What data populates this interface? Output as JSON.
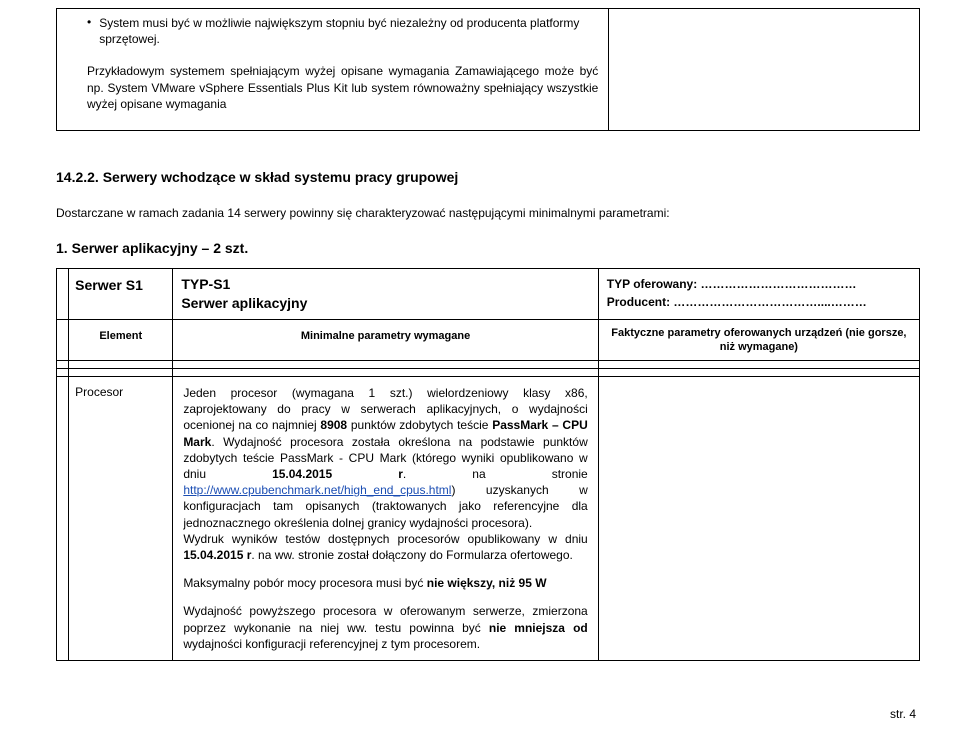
{
  "topBox": {
    "bullet": "System musi być w możliwie największym stopniu być niezależny od producenta platformy sprzętowej.",
    "para1": "Przykładowym systemem spełniającym wyżej opisane wymagania Zamawiającego może być np. System VMware vSphere Essentials Plus Kit lub system równoważny spełniający wszystkie wyżej opisane wymagania"
  },
  "sectionTitle": "14.2.2. Serwery wchodzące w skład systemu pracy grupowej",
  "intro": "Dostarczane w ramach zadania 14 serwery powinny się charakteryzować następującymi minimalnymi parametrami:",
  "sub": "1. Serwer aplikacyjny – 2 szt.",
  "headers": {
    "serwerId": "Serwer S1",
    "typLine1": "TYP-S1",
    "typLine2": "Serwer aplikacyjny",
    "typOfer": "TYP oferowany: …………………………………",
    "producent": "Producent: ………………………………....………",
    "element": "Element",
    "minimal": "Minimalne parametry wymagane",
    "fakt": "Faktyczne parametry oferowanych urządzeń (nie gorsze, niż wymagane)"
  },
  "row": {
    "label": "Procesor",
    "t1a": "Jeden  procesor (wymagana 1 szt.)",
    "t1b": " wielordzeniowy klasy x86, zaprojektowany do pracy w serwerach aplikacyjnych, o wydajności ocenionej na co najmniej ",
    "t1c": "8908",
    "t1d": " punktów zdobytych teście ",
    "t1e": "PassMark – CPU Mark",
    "t1f": ". Wydajność procesora została określona na podstawie punktów zdobytych teście PassMark - CPU Mark (którego wyniki opublikowano w dniu ",
    "t1g": "15.04.2015 r",
    "t1h": ". na stronie ",
    "link": "http://www.cpubenchmark.net/high_end_cpus.html",
    "t1i": ") uzyskanych w konfiguracjach tam opisanych (traktowanych jako referencyjne dla jednoznacznego określenia dolnej granicy wydajności procesora).",
    "t2a": "Wydruk wyników testów dostępnych procesorów opublikowany w dniu ",
    "t2b": "15.04.2015 r",
    "t2c": ". na ww. stronie został dołączony do Formularza ofertowego.",
    "t3a": "Maksymalny pobór mocy procesora musi być ",
    "t3b": "nie większy, niż 95 W",
    "t4a": "Wydajność powyższego procesora w oferowanym serwerze, zmierzona poprzez wykonanie na niej ww. testu powinna być ",
    "t4b": "nie mniejsza od",
    "t4c": " wydajności konfiguracji referencyjnej z tym procesorem."
  },
  "pageNum": "str. 4"
}
